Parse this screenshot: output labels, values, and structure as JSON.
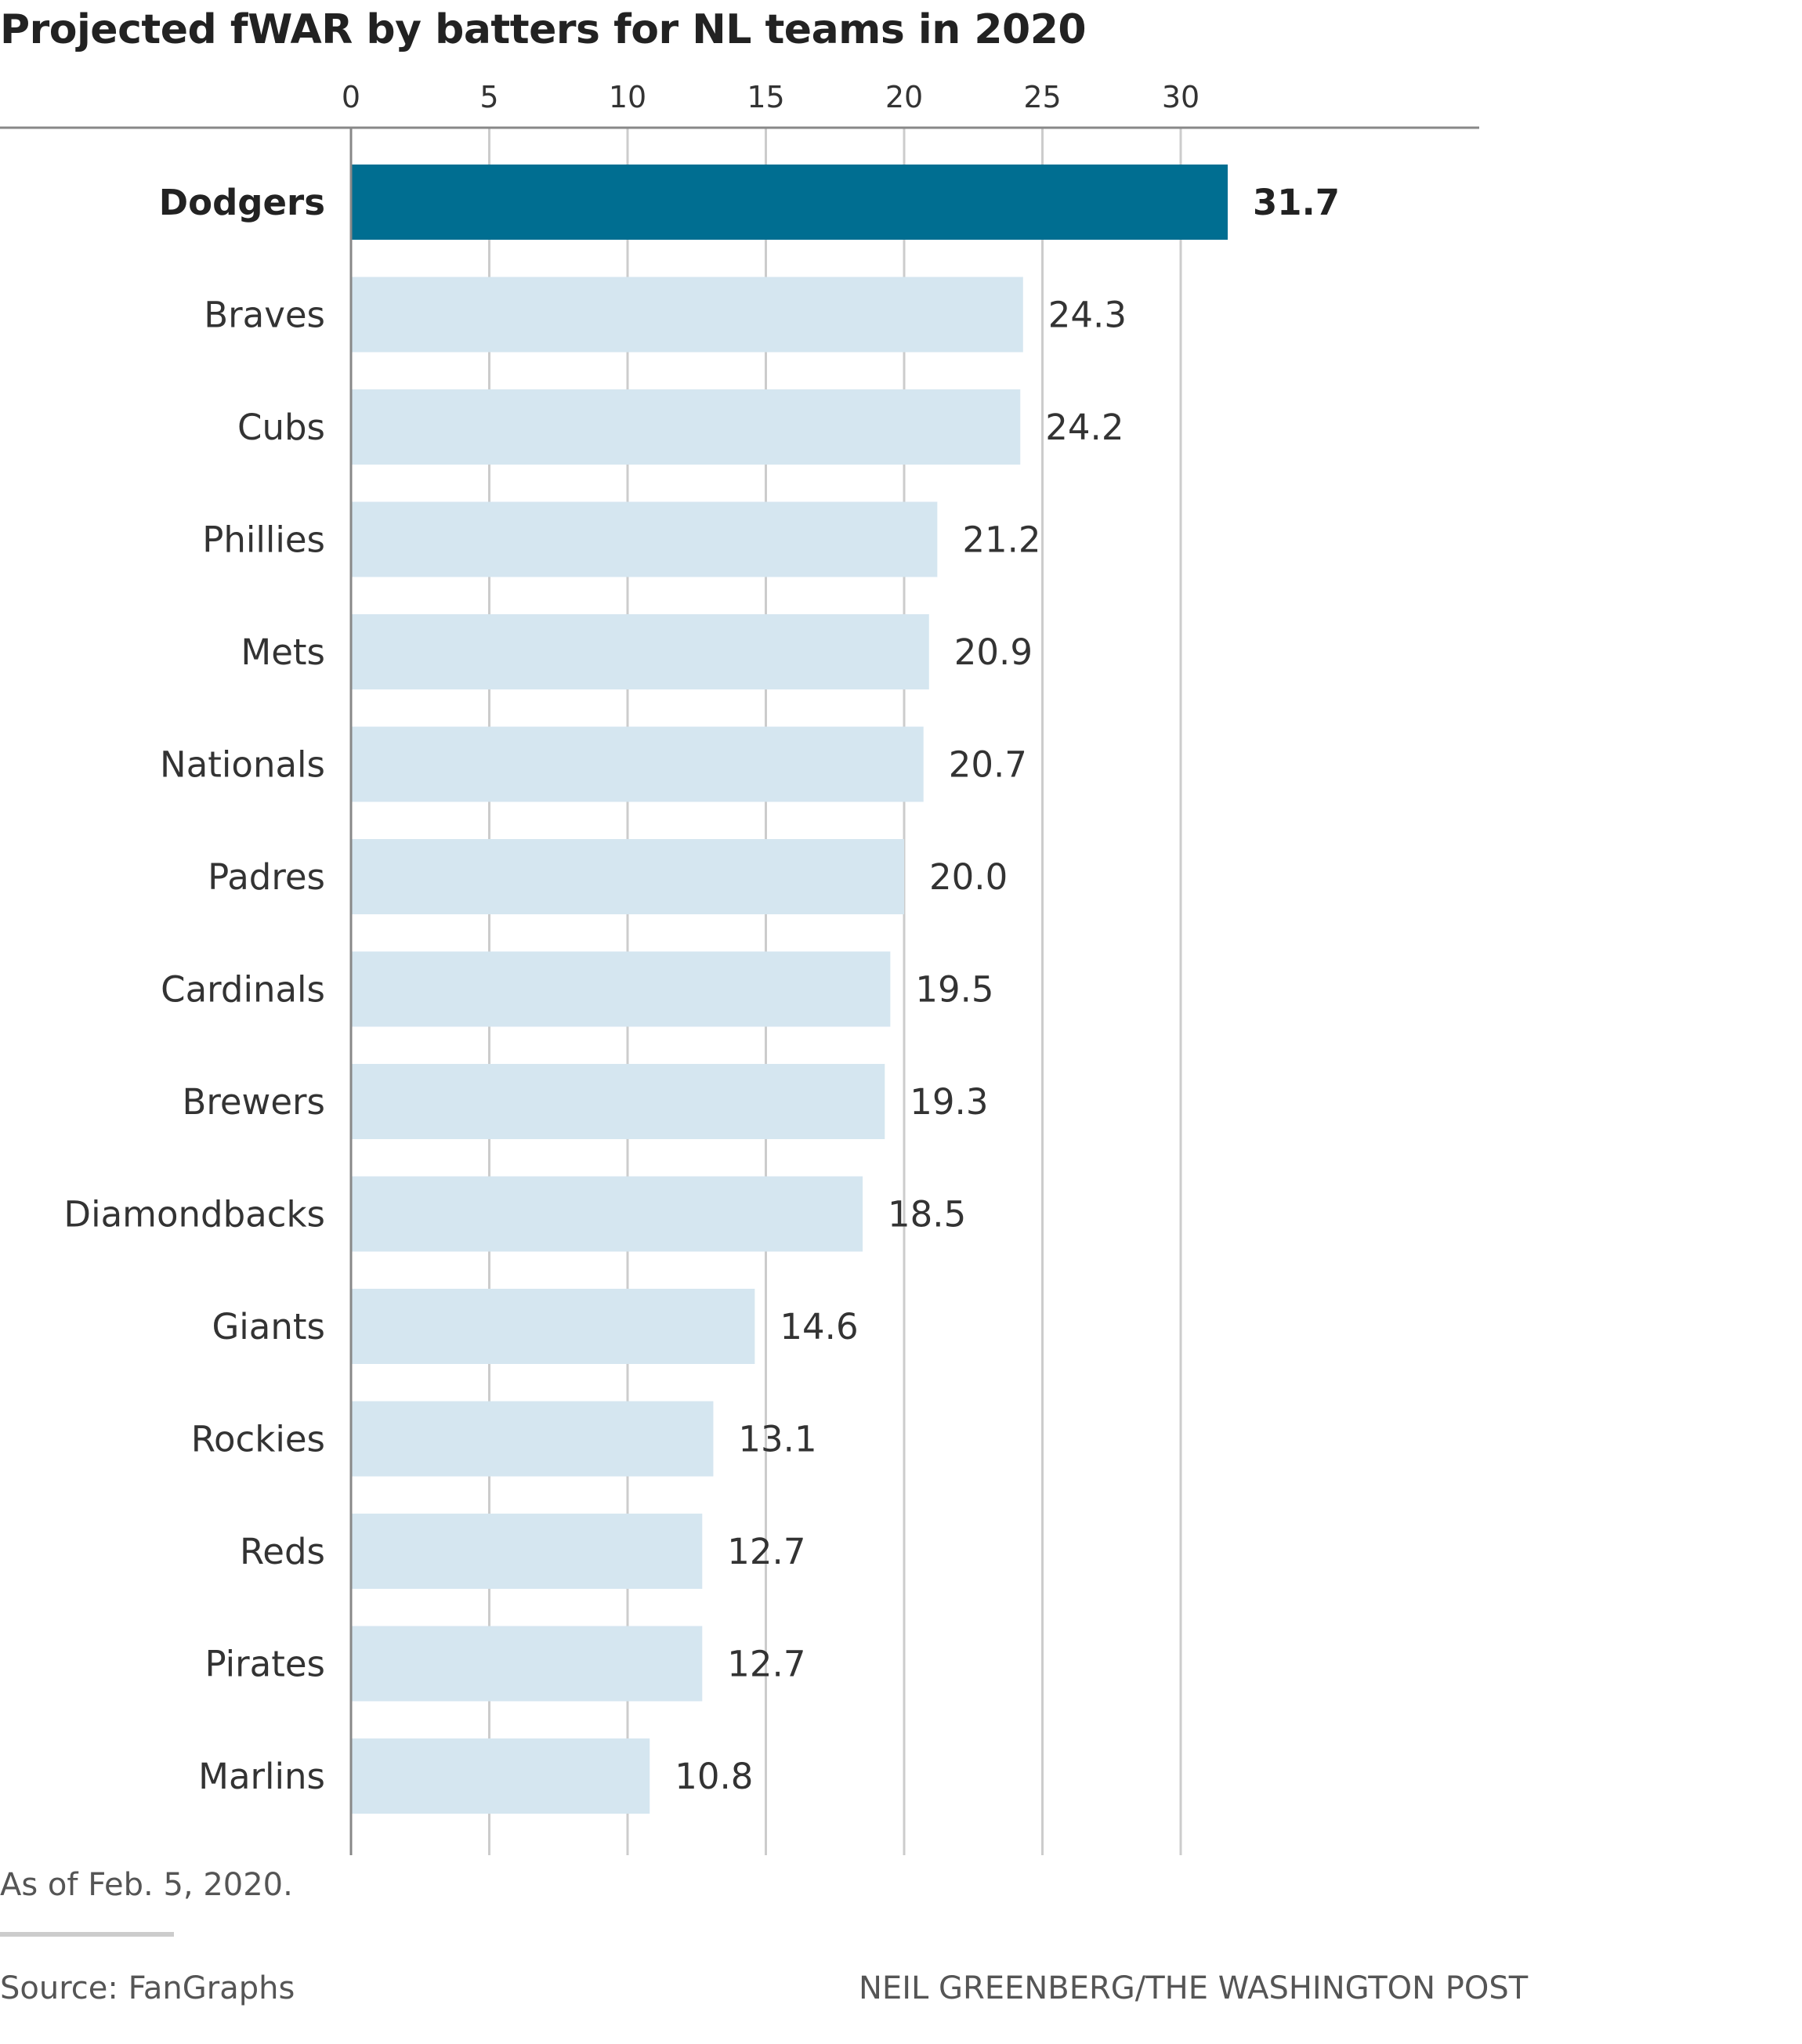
{
  "title": "Projected fWAR by batters for NL teams in 2020",
  "note": "As of Feb. 5, 2020.",
  "source": "Source: FanGraphs",
  "credit": "NEIL GREENBERG/THE WASHINGTON POST",
  "chart_data": {
    "type": "bar",
    "orientation": "horizontal",
    "categories": [
      "Dodgers",
      "Braves",
      "Cubs",
      "Phillies",
      "Mets",
      "Nationals",
      "Padres",
      "Cardinals",
      "Brewers",
      "Diamondbacks",
      "Giants",
      "Rockies",
      "Reds",
      "Pirates",
      "Marlins"
    ],
    "values": [
      31.7,
      24.3,
      24.2,
      21.2,
      20.9,
      20.7,
      20.0,
      19.5,
      19.3,
      18.5,
      14.6,
      13.1,
      12.7,
      12.7,
      10.8
    ],
    "value_labels": [
      "31.7",
      "24.3",
      "24.2",
      "21.2",
      "20.9",
      "20.7",
      "20.0",
      "19.5",
      "19.3",
      "18.5",
      "14.6",
      "13.1",
      "12.7",
      "12.7",
      "10.8"
    ],
    "highlight": "Dodgers",
    "xticks": [
      0,
      5,
      10,
      15,
      20,
      25,
      30
    ],
    "xlim": [
      0,
      32
    ],
    "axis_position": "top",
    "grid": true,
    "colors": {
      "highlight": "#006e91",
      "bar": "#d5e6f0",
      "grid": "#cccccc",
      "axis": "#888888"
    }
  }
}
